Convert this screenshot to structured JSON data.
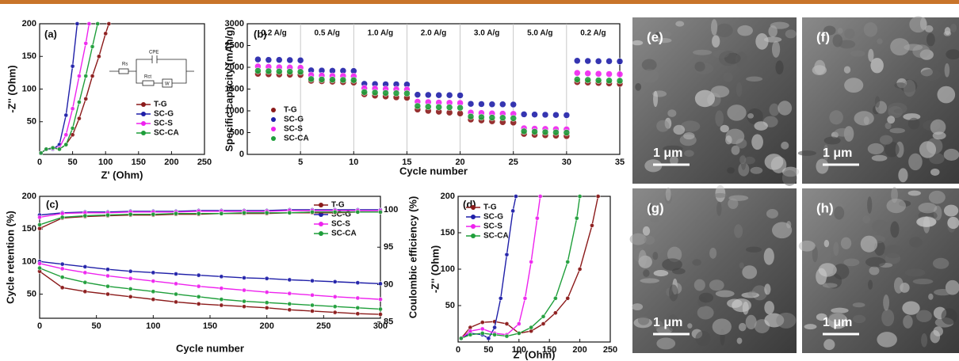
{
  "chart_data": [
    {
      "type": "line",
      "label": "(a)",
      "xlabel": "Z' (Ohm)",
      "ylabel": "-Z'' (Ohm)",
      "xlim": [
        0,
        250
      ],
      "ylim": [
        0,
        200
      ],
      "xticks": [
        0,
        50,
        100,
        150,
        200,
        250
      ],
      "yticks": [
        50,
        100,
        150,
        200
      ],
      "circuit_labels": [
        "Rs",
        "CPE",
        "Rct",
        "W"
      ],
      "series": [
        {
          "name": "T-G",
          "color": "#8b1a1a",
          "x": [
            2,
            10,
            20,
            30,
            40,
            50,
            60,
            70,
            80,
            90,
            100,
            105
          ],
          "values": [
            2,
            8,
            10,
            8,
            15,
            30,
            55,
            85,
            120,
            150,
            185,
            200
          ]
        },
        {
          "name": "SC-G",
          "color": "#1f1fa8",
          "x": [
            2,
            10,
            20,
            30,
            40,
            50,
            57
          ],
          "values": [
            2,
            8,
            8,
            15,
            60,
            135,
            200
          ]
        },
        {
          "name": "SC-S",
          "color": "#ee22ee",
          "x": [
            2,
            10,
            20,
            30,
            40,
            50,
            60,
            70,
            75
          ],
          "values": [
            2,
            8,
            9,
            10,
            30,
            70,
            120,
            170,
            200
          ]
        },
        {
          "name": "SC-CA",
          "color": "#1e9e3a",
          "x": [
            2,
            10,
            20,
            30,
            40,
            50,
            60,
            70,
            80,
            88
          ],
          "values": [
            2,
            8,
            10,
            8,
            15,
            40,
            80,
            120,
            165,
            200
          ]
        }
      ]
    },
    {
      "type": "scatter",
      "label": "(b)",
      "xlabel": "Cycle number",
      "ylabel": "Specific capacity (mAh/g)",
      "xlim": [
        0,
        35
      ],
      "ylim": [
        0,
        3000
      ],
      "xticks": [
        5,
        10,
        15,
        20,
        25,
        30,
        35
      ],
      "yticks": [
        0,
        500,
        1000,
        1500,
        2000,
        2500,
        3000
      ],
      "rate_labels": [
        "0.2 A/g",
        "0.5 A/g",
        "1.0 A/g",
        "2.0 A/g",
        "3.0 A/g",
        "5.0 A/g",
        "0.2 A/g"
      ],
      "x": [
        1,
        2,
        3,
        4,
        5,
        6,
        7,
        8,
        9,
        10,
        11,
        12,
        13,
        14,
        15,
        16,
        17,
        18,
        19,
        20,
        21,
        22,
        23,
        24,
        25,
        26,
        27,
        28,
        29,
        30,
        31,
        32,
        33,
        34,
        35
      ],
      "series": [
        {
          "name": "T-G",
          "color": "#8b1a1a",
          "values": [
            1850,
            1840,
            1835,
            1830,
            1825,
            1690,
            1680,
            1670,
            1660,
            1650,
            1380,
            1350,
            1330,
            1310,
            1300,
            1030,
            1000,
            980,
            960,
            940,
            800,
            780,
            760,
            740,
            730,
            470,
            450,
            440,
            430,
            420,
            1660,
            1650,
            1640,
            1630,
            1620
          ]
        },
        {
          "name": "SC-G",
          "color": "#1f1fa8",
          "values": [
            2180,
            2170,
            2170,
            2165,
            2160,
            1930,
            1925,
            1920,
            1920,
            1915,
            1620,
            1615,
            1610,
            1610,
            1605,
            1370,
            1365,
            1360,
            1360,
            1355,
            1160,
            1155,
            1150,
            1150,
            1145,
            920,
            915,
            910,
            905,
            900,
            2150,
            2145,
            2140,
            2140,
            2135
          ]
        },
        {
          "name": "SC-S",
          "color": "#ee22ee",
          "values": [
            2020,
            2010,
            2000,
            1995,
            1990,
            1820,
            1810,
            1800,
            1800,
            1795,
            1520,
            1510,
            1500,
            1495,
            1490,
            1210,
            1200,
            1190,
            1185,
            1180,
            960,
            950,
            940,
            935,
            930,
            600,
            590,
            585,
            580,
            575,
            1870,
            1860,
            1850,
            1845,
            1840
          ]
        },
        {
          "name": "SC-CA",
          "color": "#1e9e3a",
          "values": [
            1920,
            1910,
            1905,
            1900,
            1895,
            1730,
            1720,
            1715,
            1710,
            1705,
            1430,
            1420,
            1410,
            1405,
            1400,
            1110,
            1095,
            1085,
            1080,
            1070,
            870,
            855,
            845,
            840,
            830,
            530,
            520,
            510,
            505,
            500,
            1720,
            1710,
            1700,
            1695,
            1690
          ]
        }
      ]
    },
    {
      "type": "line",
      "label": "(c)",
      "xlabel": "Cycle number",
      "ylabel": "Cycle retention (%)",
      "y2label": "Coulombic efficiency (%)",
      "xlim": [
        0,
        300
      ],
      "ylim": [
        13,
        200
      ],
      "y2lim": [
        85.5,
        101.8
      ],
      "xticks": [
        0,
        50,
        100,
        150,
        200,
        250,
        300
      ],
      "yticks": [
        50,
        100,
        150,
        200
      ],
      "y2ticks": [
        85,
        90,
        95,
        100
      ],
      "x": [
        0,
        20,
        40,
        60,
        80,
        100,
        120,
        140,
        160,
        180,
        200,
        220,
        240,
        260,
        280,
        300
      ],
      "series": [
        {
          "name": "T-G",
          "color": "#8b1a1a",
          "values": [
            85,
            60,
            54,
            50,
            46,
            42,
            38,
            35,
            33,
            31,
            29,
            26,
            24,
            22,
            20,
            19
          ]
        },
        {
          "name": "SC-G",
          "color": "#1f1fa8",
          "values": [
            100,
            96,
            92,
            88,
            85,
            83,
            81,
            79,
            77,
            75,
            74,
            72,
            70.5,
            69,
            67.5,
            66
          ]
        },
        {
          "name": "SC-S",
          "color": "#ee22ee",
          "values": [
            97,
            89,
            83,
            78,
            74,
            70,
            66,
            62,
            59,
            56,
            53,
            51,
            48.5,
            46,
            44,
            42
          ]
        },
        {
          "name": "SC-CA",
          "color": "#1e9e3a",
          "values": [
            90,
            76,
            68,
            62,
            58,
            54,
            50,
            46,
            42,
            39,
            37,
            35,
            33,
            31,
            29,
            27
          ]
        },
        {
          "color": "#8b1a1a",
          "axis": "y2",
          "values": [
            97.5,
            98.9,
            99.1,
            99.2,
            99.3,
            99.3,
            99.4,
            99.4,
            99.5,
            99.5,
            99.5,
            99.6,
            99.6,
            99.6,
            99.7,
            99.7
          ]
        },
        {
          "color": "#1f1fa8",
          "axis": "y2",
          "values": [
            99.3,
            99.6,
            99.7,
            99.7,
            99.8,
            99.8,
            99.8,
            99.9,
            99.9,
            99.9,
            99.9,
            100.0,
            100.0,
            100.0,
            100.0,
            100.0
          ]
        },
        {
          "color": "#ee22ee",
          "axis": "y2",
          "values": [
            99.0,
            99.5,
            99.6,
            99.6,
            99.7,
            99.7,
            99.7,
            99.8,
            99.8,
            99.8,
            99.8,
            99.9,
            99.9,
            99.9,
            99.9,
            99.9
          ]
        },
        {
          "color": "#1e9e3a",
          "axis": "y2",
          "values": [
            98.0,
            99.0,
            99.2,
            99.3,
            99.4,
            99.4,
            99.5,
            99.5,
            99.5,
            99.6,
            99.6,
            99.6,
            99.7,
            99.7,
            99.7,
            99.7
          ]
        }
      ]
    },
    {
      "type": "line",
      "label": "(d)",
      "xlabel": "Z' (Ohm)",
      "ylabel": "-Z'' (Ohm)",
      "xlim": [
        0,
        250
      ],
      "ylim": [
        0,
        200
      ],
      "xticks": [
        0,
        50,
        100,
        150,
        200,
        250
      ],
      "yticks": [
        50,
        100,
        150,
        200
      ],
      "series": [
        {
          "name": "T-G",
          "color": "#8b1a1a",
          "x": [
            5,
            20,
            40,
            60,
            80,
            100,
            120,
            140,
            160,
            180,
            200,
            220,
            230
          ],
          "values": [
            5,
            20,
            27,
            28,
            25,
            12,
            15,
            25,
            40,
            60,
            100,
            160,
            200
          ]
        },
        {
          "name": "SC-G",
          "color": "#1f1fa8",
          "x": [
            5,
            20,
            40,
            50,
            60,
            70,
            80,
            90,
            95
          ],
          "values": [
            5,
            12,
            10,
            5,
            20,
            60,
            120,
            180,
            200
          ]
        },
        {
          "name": "SC-S",
          "color": "#ee22ee",
          "x": [
            5,
            20,
            40,
            60,
            80,
            100,
            110,
            120,
            130,
            135
          ],
          "values": [
            5,
            15,
            18,
            12,
            10,
            25,
            60,
            110,
            170,
            200
          ]
        },
        {
          "name": "SC-CA",
          "color": "#1e9e3a",
          "x": [
            5,
            20,
            40,
            60,
            80,
            100,
            120,
            140,
            160,
            180,
            195,
            200
          ],
          "values": [
            5,
            10,
            12,
            10,
            8,
            12,
            20,
            35,
            60,
            110,
            170,
            200
          ]
        }
      ]
    }
  ],
  "images": [
    {
      "label": "(e)",
      "scale_bar": "1 μm"
    },
    {
      "label": "(f)",
      "scale_bar": "1 μm"
    },
    {
      "label": "(g)",
      "scale_bar": "1 μm"
    },
    {
      "label": "(h)",
      "scale_bar": "1 μm"
    }
  ]
}
